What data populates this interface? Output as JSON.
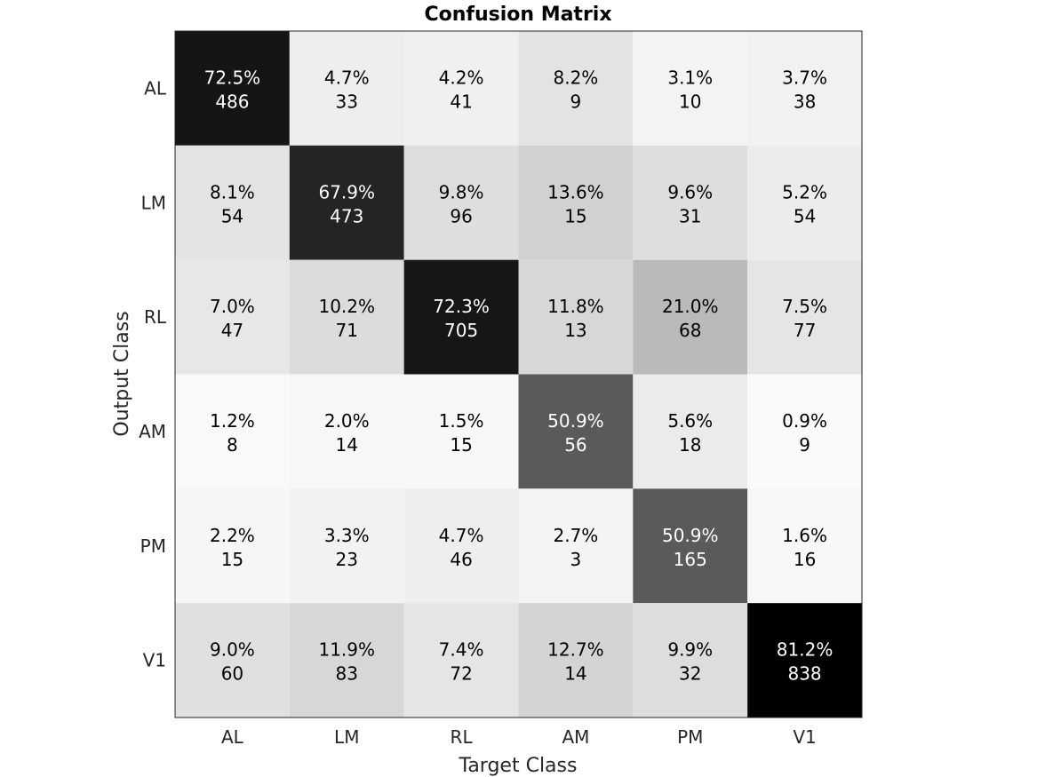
{
  "chart_data": {
    "type": "heatmap",
    "title": "Confusion Matrix",
    "xlabel": "Target Class",
    "ylabel": "Output Class",
    "x_categories": [
      "AL",
      "LM",
      "RL",
      "AM",
      "PM",
      "V1"
    ],
    "y_categories": [
      "AL",
      "LM",
      "RL",
      "AM",
      "PM",
      "V1"
    ],
    "colormap": "grayscale, darker = higher percentage",
    "cells": [
      [
        {
          "pct": "72.5%",
          "count": "486",
          "value": 72.5
        },
        {
          "pct": "4.7%",
          "count": "33",
          "value": 4.7
        },
        {
          "pct": "4.2%",
          "count": "41",
          "value": 4.2
        },
        {
          "pct": "8.2%",
          "count": "9",
          "value": 8.2
        },
        {
          "pct": "3.1%",
          "count": "10",
          "value": 3.1
        },
        {
          "pct": "3.7%",
          "count": "38",
          "value": 3.7
        }
      ],
      [
        {
          "pct": "8.1%",
          "count": "54",
          "value": 8.1
        },
        {
          "pct": "67.9%",
          "count": "473",
          "value": 67.9
        },
        {
          "pct": "9.8%",
          "count": "96",
          "value": 9.8
        },
        {
          "pct": "13.6%",
          "count": "15",
          "value": 13.6
        },
        {
          "pct": "9.6%",
          "count": "31",
          "value": 9.6
        },
        {
          "pct": "5.2%",
          "count": "54",
          "value": 5.2
        }
      ],
      [
        {
          "pct": "7.0%",
          "count": "47",
          "value": 7.0
        },
        {
          "pct": "10.2%",
          "count": "71",
          "value": 10.2
        },
        {
          "pct": "72.3%",
          "count": "705",
          "value": 72.3
        },
        {
          "pct": "11.8%",
          "count": "13",
          "value": 11.8
        },
        {
          "pct": "21.0%",
          "count": "68",
          "value": 21.0
        },
        {
          "pct": "7.5%",
          "count": "77",
          "value": 7.5
        }
      ],
      [
        {
          "pct": "1.2%",
          "count": "8",
          "value": 1.2
        },
        {
          "pct": "2.0%",
          "count": "14",
          "value": 2.0
        },
        {
          "pct": "1.5%",
          "count": "15",
          "value": 1.5
        },
        {
          "pct": "50.9%",
          "count": "56",
          "value": 50.9
        },
        {
          "pct": "5.6%",
          "count": "18",
          "value": 5.6
        },
        {
          "pct": "0.9%",
          "count": "9",
          "value": 0.9
        }
      ],
      [
        {
          "pct": "2.2%",
          "count": "15",
          "value": 2.2
        },
        {
          "pct": "3.3%",
          "count": "23",
          "value": 3.3
        },
        {
          "pct": "4.7%",
          "count": "46",
          "value": 4.7
        },
        {
          "pct": "2.7%",
          "count": "3",
          "value": 2.7
        },
        {
          "pct": "50.9%",
          "count": "165",
          "value": 50.9
        },
        {
          "pct": "1.6%",
          "count": "16",
          "value": 1.6
        }
      ],
      [
        {
          "pct": "9.0%",
          "count": "60",
          "value": 9.0
        },
        {
          "pct": "11.9%",
          "count": "83",
          "value": 11.9
        },
        {
          "pct": "7.4%",
          "count": "72",
          "value": 7.4
        },
        {
          "pct": "12.7%",
          "count": "14",
          "value": 12.7
        },
        {
          "pct": "9.9%",
          "count": "32",
          "value": 9.9
        },
        {
          "pct": "81.2%",
          "count": "838",
          "value": 81.2
        }
      ]
    ]
  }
}
